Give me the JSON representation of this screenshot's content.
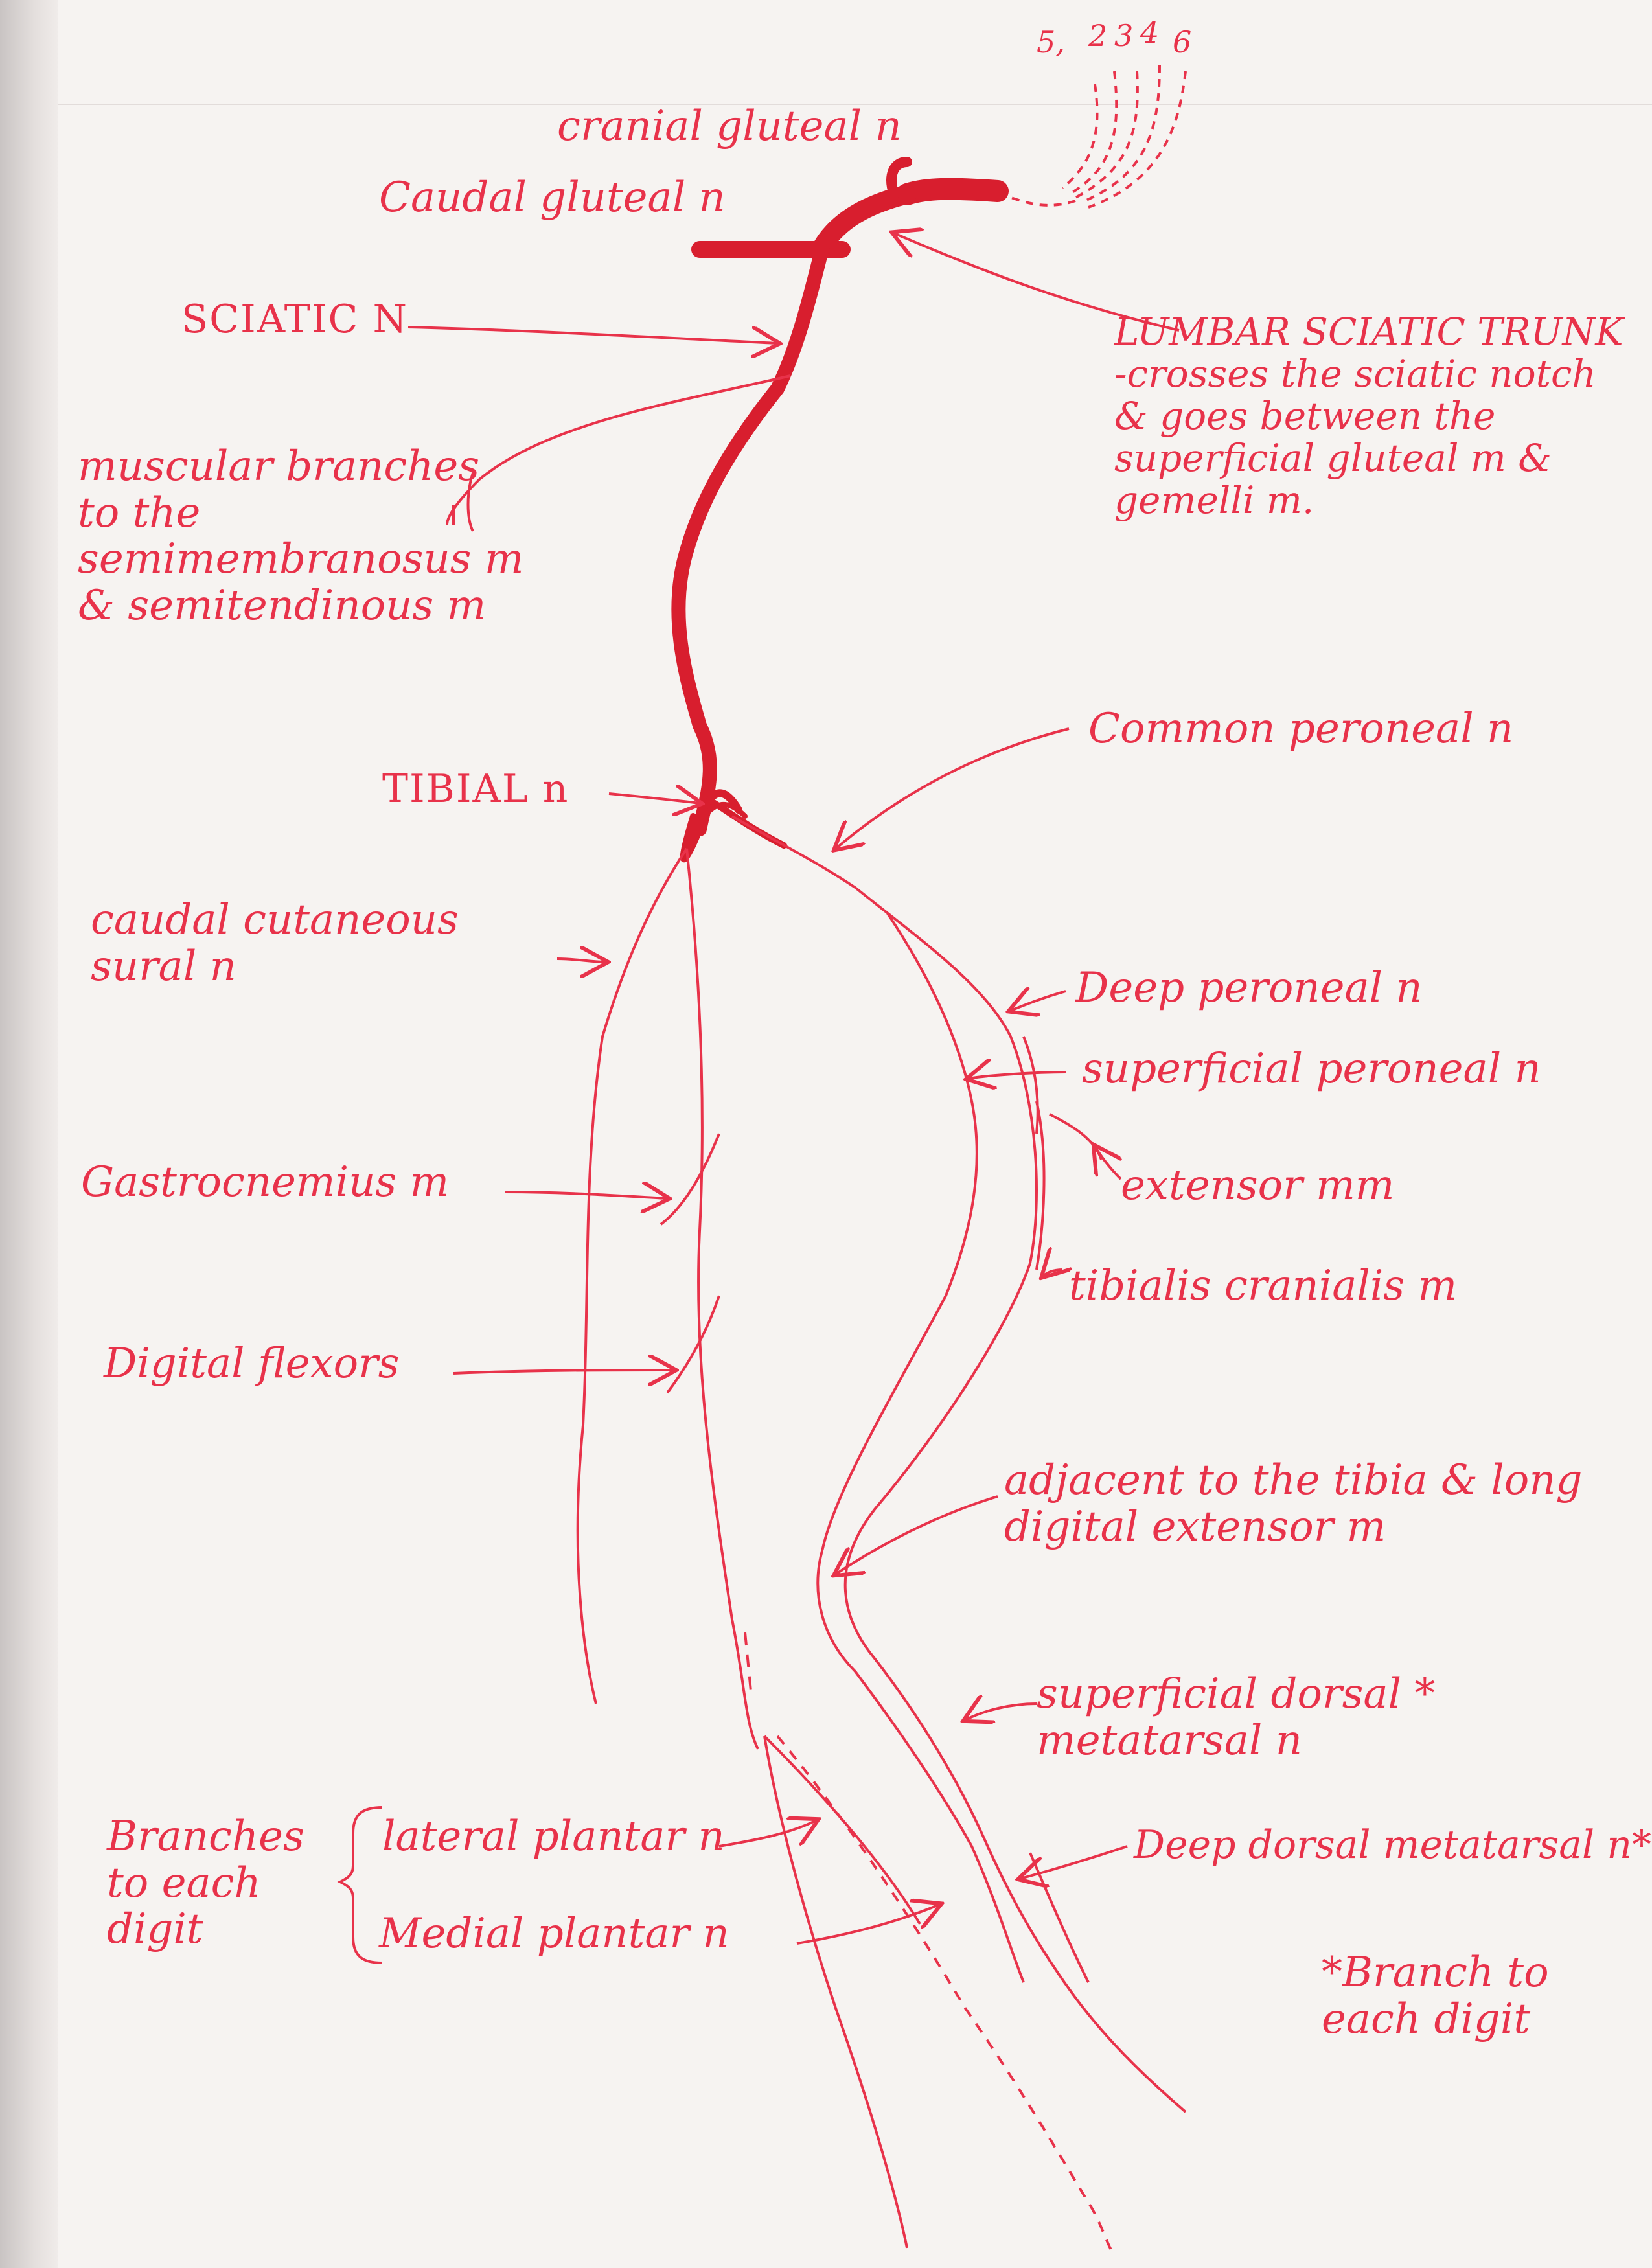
{
  "colors": {
    "ink": "#e8324a",
    "nerve_trunk": "#d81e2e",
    "paper": "#f6f3f1"
  },
  "spinal_roots": {
    "labels": [
      "5,",
      "2",
      "3",
      "4",
      "6"
    ]
  },
  "labels": {
    "cranial_gluteal": "cranial gluteal n",
    "caudal_gluteal": "Caudal gluteal n",
    "sciatic": "SCIATIC N",
    "lumbar_sciatic_trunk": "LUMBAR SCIATIC TRUNK\n-crosses the sciatic notch\n& goes between the\nsuperficial gluteal m &\ngemelli m.",
    "muscular_branches": "muscular branches\nto the\nsemimembranosus m\n& semitendinous m",
    "common_peroneal": "Common peroneal n",
    "tibial": "TIBIAL n",
    "caudal_cutaneous_sural": "caudal cutaneous\nsural n",
    "deep_peroneal": "Deep peroneal n",
    "superficial_peroneal": "superficial peroneal n",
    "extensor": "extensor mm",
    "gastrocnemius": "Gastrocnemius m",
    "tibialis_cranialis": "tibialis cranialis m",
    "digital_flexors": "Digital flexors",
    "adjacent_tibia": "adjacent to the tibia & long\ndigital extensor m",
    "superficial_dorsal_metatarsal": "superficial dorsal *\nmetatarsal n",
    "branches_each_digit": "Branches\nto each\ndigit",
    "lateral_plantar": "lateral plantar n",
    "medial_plantar": "Medial plantar n",
    "deep_dorsal_metatarsal": "Deep dorsal metatarsal n*",
    "footnote": "*Branch to\neach digit"
  }
}
